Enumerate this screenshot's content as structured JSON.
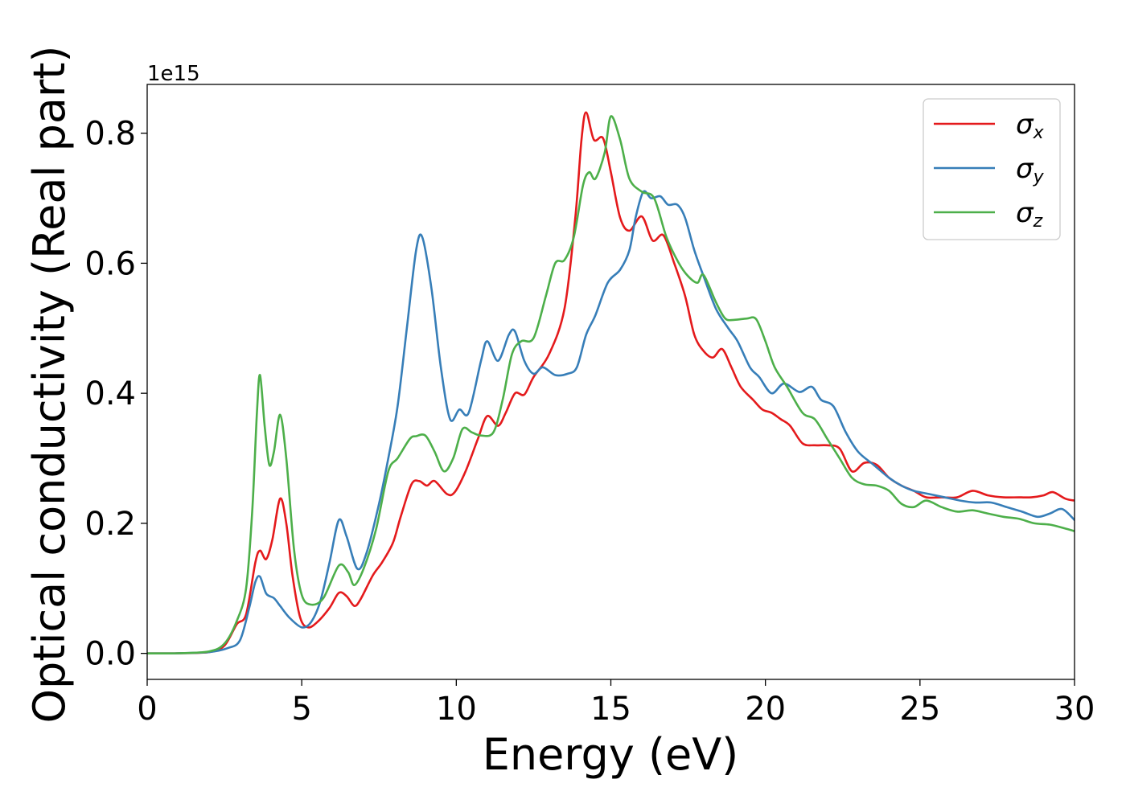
{
  "chart_data": {
    "type": "line",
    "title": "",
    "xlabel": "Energy (eV)",
    "ylabel": "Optical conductivity (Real part)",
    "y_offset_label": "1e15",
    "xlim": [
      0,
      30
    ],
    "ylim": [
      -0.04,
      0.875
    ],
    "x_ticks": [
      0,
      5,
      10,
      15,
      20,
      25,
      30
    ],
    "x_tick_labels": [
      "0",
      "5",
      "10",
      "15",
      "20",
      "25",
      "30"
    ],
    "y_ticks": [
      0.0,
      0.2,
      0.4,
      0.6,
      0.8
    ],
    "y_tick_labels": [
      "0.0",
      "0.2",
      "0.4",
      "0.6",
      "0.8"
    ],
    "grid": false,
    "legend_position": "top-right",
    "series": [
      {
        "name": "σx",
        "symbol": "σ",
        "subscript": "x",
        "color": "#e41a1c",
        "points": [
          [
            0,
            0
          ],
          [
            1,
            0.0002
          ],
          [
            2,
            0.002
          ],
          [
            2.5,
            0.012
          ],
          [
            2.9,
            0.045
          ],
          [
            3.2,
            0.06
          ],
          [
            3.5,
            0.14
          ],
          [
            3.65,
            0.158
          ],
          [
            3.85,
            0.145
          ],
          [
            4.05,
            0.175
          ],
          [
            4.3,
            0.238
          ],
          [
            4.5,
            0.2
          ],
          [
            4.7,
            0.12
          ],
          [
            4.95,
            0.055
          ],
          [
            5.2,
            0.04
          ],
          [
            5.5,
            0.048
          ],
          [
            5.9,
            0.07
          ],
          [
            6.2,
            0.093
          ],
          [
            6.45,
            0.088
          ],
          [
            6.7,
            0.073
          ],
          [
            6.9,
            0.083
          ],
          [
            7.3,
            0.12
          ],
          [
            7.6,
            0.14
          ],
          [
            7.95,
            0.17
          ],
          [
            8.2,
            0.21
          ],
          [
            8.55,
            0.26
          ],
          [
            8.8,
            0.265
          ],
          [
            9.05,
            0.258
          ],
          [
            9.3,
            0.265
          ],
          [
            9.7,
            0.245
          ],
          [
            9.95,
            0.248
          ],
          [
            10.3,
            0.28
          ],
          [
            10.7,
            0.33
          ],
          [
            11.0,
            0.365
          ],
          [
            11.35,
            0.35
          ],
          [
            11.6,
            0.37
          ],
          [
            11.9,
            0.4
          ],
          [
            12.2,
            0.398
          ],
          [
            12.5,
            0.425
          ],
          [
            13.0,
            0.46
          ],
          [
            13.5,
            0.53
          ],
          [
            13.85,
            0.67
          ],
          [
            14.05,
            0.79
          ],
          [
            14.2,
            0.832
          ],
          [
            14.45,
            0.79
          ],
          [
            14.75,
            0.792
          ],
          [
            15.0,
            0.74
          ],
          [
            15.3,
            0.67
          ],
          [
            15.6,
            0.65
          ],
          [
            16.0,
            0.672
          ],
          [
            16.35,
            0.635
          ],
          [
            16.7,
            0.643
          ],
          [
            17.05,
            0.6
          ],
          [
            17.4,
            0.55
          ],
          [
            17.7,
            0.49
          ],
          [
            18.0,
            0.465
          ],
          [
            18.3,
            0.455
          ],
          [
            18.6,
            0.468
          ],
          [
            18.9,
            0.44
          ],
          [
            19.2,
            0.41
          ],
          [
            19.6,
            0.39
          ],
          [
            19.9,
            0.375
          ],
          [
            20.2,
            0.37
          ],
          [
            20.5,
            0.36
          ],
          [
            20.8,
            0.35
          ],
          [
            21.2,
            0.323
          ],
          [
            21.6,
            0.32
          ],
          [
            22.0,
            0.32
          ],
          [
            22.4,
            0.315
          ],
          [
            22.8,
            0.28
          ],
          [
            23.2,
            0.293
          ],
          [
            23.6,
            0.29
          ],
          [
            24.0,
            0.27
          ],
          [
            24.4,
            0.258
          ],
          [
            24.8,
            0.25
          ],
          [
            25.2,
            0.24
          ],
          [
            25.7,
            0.24
          ],
          [
            26.2,
            0.24
          ],
          [
            26.7,
            0.25
          ],
          [
            27.2,
            0.243
          ],
          [
            27.7,
            0.24
          ],
          [
            28.2,
            0.24
          ],
          [
            28.6,
            0.24
          ],
          [
            29.0,
            0.243
          ],
          [
            29.3,
            0.248
          ],
          [
            29.7,
            0.238
          ],
          [
            30.0,
            0.235
          ]
        ]
      },
      {
        "name": "σy",
        "symbol": "σ",
        "subscript": "y",
        "color": "#377eb8",
        "points": [
          [
            0,
            0
          ],
          [
            1,
            0.0002
          ],
          [
            2,
            0.002
          ],
          [
            2.6,
            0.008
          ],
          [
            3.0,
            0.02
          ],
          [
            3.3,
            0.07
          ],
          [
            3.5,
            0.11
          ],
          [
            3.65,
            0.118
          ],
          [
            3.85,
            0.092
          ],
          [
            4.1,
            0.085
          ],
          [
            4.3,
            0.073
          ],
          [
            4.6,
            0.055
          ],
          [
            5.0,
            0.04
          ],
          [
            5.3,
            0.048
          ],
          [
            5.6,
            0.08
          ],
          [
            5.9,
            0.14
          ],
          [
            6.2,
            0.205
          ],
          [
            6.45,
            0.18
          ],
          [
            6.8,
            0.13
          ],
          [
            7.1,
            0.155
          ],
          [
            7.5,
            0.23
          ],
          [
            7.8,
            0.3
          ],
          [
            8.1,
            0.38
          ],
          [
            8.4,
            0.5
          ],
          [
            8.7,
            0.62
          ],
          [
            8.9,
            0.64
          ],
          [
            9.2,
            0.56
          ],
          [
            9.5,
            0.44
          ],
          [
            9.8,
            0.36
          ],
          [
            10.1,
            0.375
          ],
          [
            10.4,
            0.37
          ],
          [
            10.8,
            0.45
          ],
          [
            11.0,
            0.48
          ],
          [
            11.35,
            0.45
          ],
          [
            11.7,
            0.49
          ],
          [
            11.9,
            0.495
          ],
          [
            12.2,
            0.45
          ],
          [
            12.5,
            0.43
          ],
          [
            12.8,
            0.44
          ],
          [
            13.2,
            0.428
          ],
          [
            13.6,
            0.43
          ],
          [
            13.9,
            0.44
          ],
          [
            14.2,
            0.49
          ],
          [
            14.5,
            0.52
          ],
          [
            14.9,
            0.57
          ],
          [
            15.3,
            0.59
          ],
          [
            15.6,
            0.62
          ],
          [
            15.8,
            0.67
          ],
          [
            16.05,
            0.71
          ],
          [
            16.3,
            0.7
          ],
          [
            16.6,
            0.703
          ],
          [
            16.85,
            0.69
          ],
          [
            17.15,
            0.69
          ],
          [
            17.4,
            0.67
          ],
          [
            17.7,
            0.62
          ],
          [
            18.0,
            0.58
          ],
          [
            18.4,
            0.53
          ],
          [
            18.8,
            0.5
          ],
          [
            19.1,
            0.48
          ],
          [
            19.5,
            0.44
          ],
          [
            19.8,
            0.425
          ],
          [
            20.2,
            0.4
          ],
          [
            20.6,
            0.415
          ],
          [
            21.1,
            0.402
          ],
          [
            21.5,
            0.41
          ],
          [
            21.8,
            0.39
          ],
          [
            22.2,
            0.38
          ],
          [
            22.6,
            0.34
          ],
          [
            23.0,
            0.31
          ],
          [
            23.5,
            0.29
          ],
          [
            24.0,
            0.27
          ],
          [
            24.4,
            0.258
          ],
          [
            24.8,
            0.25
          ],
          [
            25.3,
            0.245
          ],
          [
            25.8,
            0.24
          ],
          [
            26.3,
            0.235
          ],
          [
            26.8,
            0.232
          ],
          [
            27.3,
            0.232
          ],
          [
            27.8,
            0.225
          ],
          [
            28.3,
            0.218
          ],
          [
            28.8,
            0.21
          ],
          [
            29.2,
            0.215
          ],
          [
            29.6,
            0.222
          ],
          [
            30.0,
            0.205
          ]
        ]
      },
      {
        "name": "σz",
        "symbol": "σ",
        "subscript": "z",
        "color": "#4daf4a",
        "points": [
          [
            0,
            0
          ],
          [
            1,
            0.0002
          ],
          [
            2,
            0.003
          ],
          [
            2.5,
            0.015
          ],
          [
            2.9,
            0.05
          ],
          [
            3.2,
            0.1
          ],
          [
            3.4,
            0.22
          ],
          [
            3.55,
            0.37
          ],
          [
            3.65,
            0.428
          ],
          [
            3.8,
            0.35
          ],
          [
            3.95,
            0.29
          ],
          [
            4.1,
            0.31
          ],
          [
            4.3,
            0.367
          ],
          [
            4.5,
            0.3
          ],
          [
            4.75,
            0.16
          ],
          [
            5.0,
            0.09
          ],
          [
            5.3,
            0.075
          ],
          [
            5.7,
            0.085
          ],
          [
            6.2,
            0.135
          ],
          [
            6.5,
            0.125
          ],
          [
            6.7,
            0.105
          ],
          [
            7.0,
            0.13
          ],
          [
            7.4,
            0.19
          ],
          [
            7.8,
            0.28
          ],
          [
            8.1,
            0.3
          ],
          [
            8.5,
            0.33
          ],
          [
            8.7,
            0.334
          ],
          [
            9.0,
            0.335
          ],
          [
            9.3,
            0.31
          ],
          [
            9.6,
            0.28
          ],
          [
            9.9,
            0.3
          ],
          [
            10.2,
            0.345
          ],
          [
            10.5,
            0.34
          ],
          [
            10.8,
            0.335
          ],
          [
            11.2,
            0.34
          ],
          [
            11.5,
            0.39
          ],
          [
            11.8,
            0.46
          ],
          [
            12.1,
            0.48
          ],
          [
            12.5,
            0.485
          ],
          [
            12.9,
            0.55
          ],
          [
            13.2,
            0.6
          ],
          [
            13.5,
            0.605
          ],
          [
            13.8,
            0.64
          ],
          [
            14.1,
            0.72
          ],
          [
            14.3,
            0.74
          ],
          [
            14.5,
            0.73
          ],
          [
            14.8,
            0.77
          ],
          [
            15.0,
            0.826
          ],
          [
            15.3,
            0.79
          ],
          [
            15.6,
            0.73
          ],
          [
            16.0,
            0.71
          ],
          [
            16.4,
            0.7
          ],
          [
            16.8,
            0.64
          ],
          [
            17.2,
            0.6
          ],
          [
            17.5,
            0.58
          ],
          [
            17.8,
            0.57
          ],
          [
            18.0,
            0.582
          ],
          [
            18.4,
            0.54
          ],
          [
            18.7,
            0.515
          ],
          [
            19.0,
            0.513
          ],
          [
            19.4,
            0.515
          ],
          [
            19.7,
            0.514
          ],
          [
            20.0,
            0.48
          ],
          [
            20.3,
            0.44
          ],
          [
            20.7,
            0.41
          ],
          [
            21.2,
            0.37
          ],
          [
            21.6,
            0.36
          ],
          [
            22.0,
            0.33
          ],
          [
            22.4,
            0.3
          ],
          [
            22.8,
            0.27
          ],
          [
            23.2,
            0.26
          ],
          [
            23.6,
            0.258
          ],
          [
            24.0,
            0.25
          ],
          [
            24.4,
            0.23
          ],
          [
            24.8,
            0.225
          ],
          [
            25.2,
            0.235
          ],
          [
            25.7,
            0.225
          ],
          [
            26.2,
            0.218
          ],
          [
            26.7,
            0.22
          ],
          [
            27.2,
            0.215
          ],
          [
            27.7,
            0.21
          ],
          [
            28.2,
            0.207
          ],
          [
            28.7,
            0.2
          ],
          [
            29.2,
            0.198
          ],
          [
            29.7,
            0.192
          ],
          [
            30.0,
            0.188
          ]
        ]
      }
    ]
  }
}
